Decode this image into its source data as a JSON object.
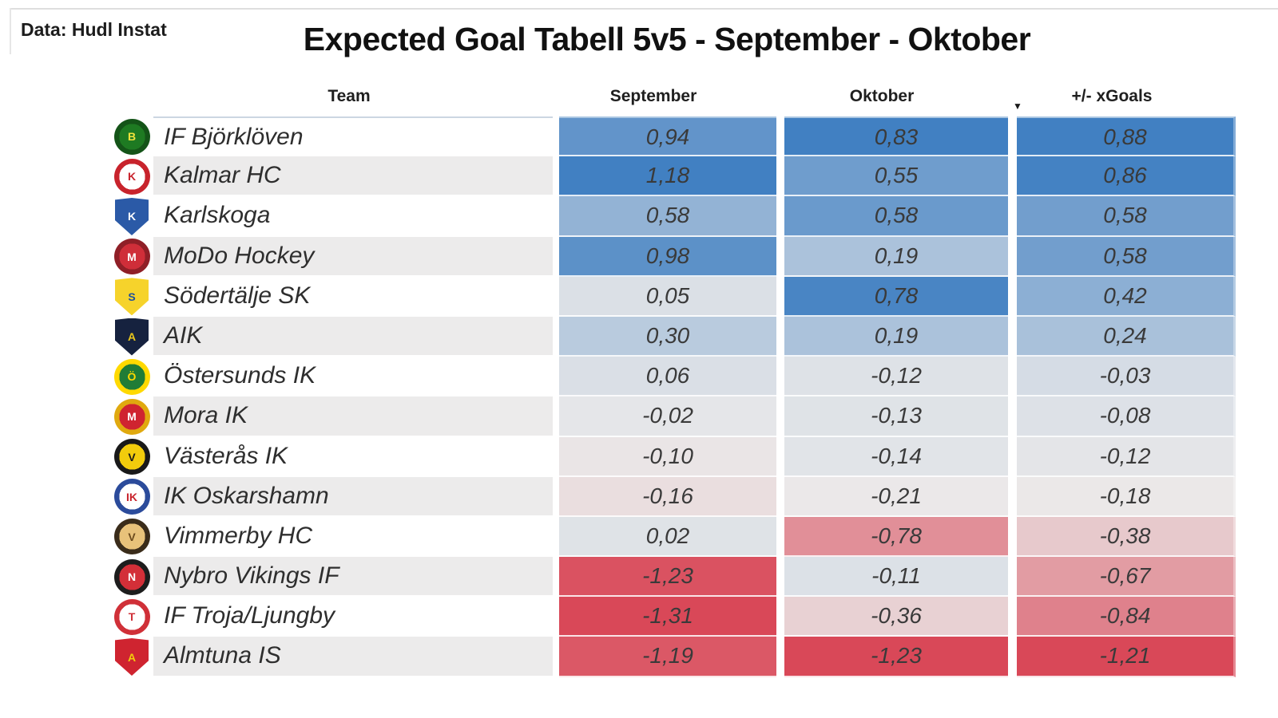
{
  "source_label": "Data: Hudl Instat",
  "title": "Expected Goal Tabell 5v5 - September - Oktober",
  "colors": {
    "scale_positive": "#4180c2",
    "scale_midpoint": "#ebeaea",
    "scale_negative": "#d94858",
    "row_stripe": "#ecebeb",
    "row_plain": "#ffffff",
    "first_row_border": "#aac6e2",
    "frame_line": "#dedede"
  },
  "table": {
    "headers": [
      {
        "label": "Team"
      },
      {
        "label": "September"
      },
      {
        "label": "Oktober"
      },
      {
        "label": "+/- xGoals"
      }
    ],
    "sort_icon": "▼",
    "sorted_by": "+/- xGoals",
    "sort_direction": "descending",
    "rows": [
      {
        "team": "IF Björklöven",
        "values": [
          "0,94",
          "0,83",
          "0,88"
        ],
        "logo": {
          "shape": "circle",
          "bg": "#1e7a22",
          "ring": "#145418",
          "fg": "#f2e43c",
          "text": "B"
        }
      },
      {
        "team": "Kalmar HC",
        "values": [
          "1,18",
          "0,55",
          "0,86"
        ],
        "logo": {
          "shape": "circle",
          "bg": "#ffffff",
          "ring": "#c8232c",
          "fg": "#c8232c",
          "text": "K"
        }
      },
      {
        "team": "Karlskoga",
        "values": [
          "0,58",
          "0,58",
          "0,58"
        ],
        "logo": {
          "shape": "shield",
          "bg": "#2b5aa7",
          "fg": "#ffffff",
          "text": "K"
        }
      },
      {
        "team": "MoDo Hockey",
        "values": [
          "0,98",
          "0,19",
          "0,58"
        ],
        "logo": {
          "shape": "circle",
          "bg": "#cf2e39",
          "ring": "#8f1f27",
          "fg": "#ffffff",
          "text": "M"
        }
      },
      {
        "team": "Södertälje SK",
        "values": [
          "0,05",
          "0,78",
          "0,42"
        ],
        "logo": {
          "shape": "shield",
          "bg": "#f6d32b",
          "fg": "#1d4f9f",
          "text": "S"
        }
      },
      {
        "team": "AIK",
        "values": [
          "0,30",
          "0,19",
          "0,24"
        ],
        "logo": {
          "shape": "shield",
          "bg": "#16223f",
          "fg": "#e8c61c",
          "text": "A"
        }
      },
      {
        "team": "Östersunds IK",
        "values": [
          "0,06",
          "-0,12",
          "-0,03"
        ],
        "logo": {
          "shape": "circle",
          "bg": "#207c36",
          "ring": "#ffd900",
          "fg": "#ffd900",
          "text": "Ö"
        }
      },
      {
        "team": "Mora IK",
        "values": [
          "-0,02",
          "-0,13",
          "-0,08"
        ],
        "logo": {
          "shape": "circle",
          "bg": "#cf2430",
          "ring": "#e0a90f",
          "fg": "#ffffff",
          "text": "M"
        }
      },
      {
        "team": "Västerås IK",
        "values": [
          "-0,10",
          "-0,14",
          "-0,12"
        ],
        "logo": {
          "shape": "circle",
          "bg": "#f2cc0c",
          "ring": "#191919",
          "fg": "#191919",
          "text": "V"
        }
      },
      {
        "team": "IK Oskarshamn",
        "values": [
          "-0,16",
          "-0,21",
          "-0,18"
        ],
        "logo": {
          "shape": "circle",
          "bg": "#ffffff",
          "ring": "#2b4b9b",
          "fg": "#c8232c",
          "text": "IK"
        }
      },
      {
        "team": "Vimmerby HC",
        "values": [
          "0,02",
          "-0,78",
          "-0,38"
        ],
        "logo": {
          "shape": "circle",
          "bg": "#e8c27a",
          "ring": "#3a2c1a",
          "fg": "#6b4a1d",
          "text": "V"
        }
      },
      {
        "team": "Nybro Vikings IF",
        "values": [
          "-1,23",
          "-0,11",
          "-0,67"
        ],
        "logo": {
          "shape": "circle",
          "bg": "#d32f38",
          "ring": "#1d1d1d",
          "fg": "#ffffff",
          "text": "N"
        }
      },
      {
        "team": "IF Troja/Ljungby",
        "values": [
          "-1,31",
          "-0,36",
          "-0,84"
        ],
        "logo": {
          "shape": "circle",
          "bg": "#ffffff",
          "ring": "#d03038",
          "fg": "#d03038",
          "text": "T"
        }
      },
      {
        "team": "Almtuna IS",
        "values": [
          "-1,19",
          "-1,23",
          "-1,21"
        ],
        "logo": {
          "shape": "shield",
          "bg": "#cf2430",
          "fg": "#f2cc0c",
          "text": "A"
        }
      }
    ]
  },
  "chart_data": {
    "type": "table",
    "title": "Expected Goal Tabell 5v5 - September - Oktober",
    "source": "Data: Hudl Instat",
    "columns": [
      "Team",
      "September",
      "Oktober",
      "+/- xGoals"
    ],
    "sorted_by": "+/- xGoals",
    "sort_direction": "descending",
    "color_encoding": "diverging per-column scale, blue = high xG diff, red = low xG diff",
    "rows": [
      {
        "team": "IF Björklöven",
        "september": 0.94,
        "oktober": 0.83,
        "plus_minus_xgoals": 0.88
      },
      {
        "team": "Kalmar HC",
        "september": 1.18,
        "oktober": 0.55,
        "plus_minus_xgoals": 0.86
      },
      {
        "team": "Karlskoga",
        "september": 0.58,
        "oktober": 0.58,
        "plus_minus_xgoals": 0.58
      },
      {
        "team": "MoDo Hockey",
        "september": 0.98,
        "oktober": 0.19,
        "plus_minus_xgoals": 0.58
      },
      {
        "team": "Södertälje SK",
        "september": 0.05,
        "oktober": 0.78,
        "plus_minus_xgoals": 0.42
      },
      {
        "team": "AIK",
        "september": 0.3,
        "oktober": 0.19,
        "plus_minus_xgoals": 0.24
      },
      {
        "team": "Östersunds IK",
        "september": 0.06,
        "oktober": -0.12,
        "plus_minus_xgoals": -0.03
      },
      {
        "team": "Mora IK",
        "september": -0.02,
        "oktober": -0.13,
        "plus_minus_xgoals": -0.08
      },
      {
        "team": "Västerås IK",
        "september": -0.1,
        "oktober": -0.14,
        "plus_minus_xgoals": -0.12
      },
      {
        "team": "IK Oskarshamn",
        "september": -0.16,
        "oktober": -0.21,
        "plus_minus_xgoals": -0.18
      },
      {
        "team": "Vimmerby HC",
        "september": 0.02,
        "oktober": -0.78,
        "plus_minus_xgoals": -0.38
      },
      {
        "team": "Nybro Vikings IF",
        "september": -1.23,
        "oktober": -0.11,
        "plus_minus_xgoals": -0.67
      },
      {
        "team": "IF Troja/Ljungby",
        "september": -1.31,
        "oktober": -0.36,
        "plus_minus_xgoals": -0.84
      },
      {
        "team": "Almtuna IS",
        "september": -1.19,
        "oktober": -1.23,
        "plus_minus_xgoals": -1.21
      }
    ]
  }
}
